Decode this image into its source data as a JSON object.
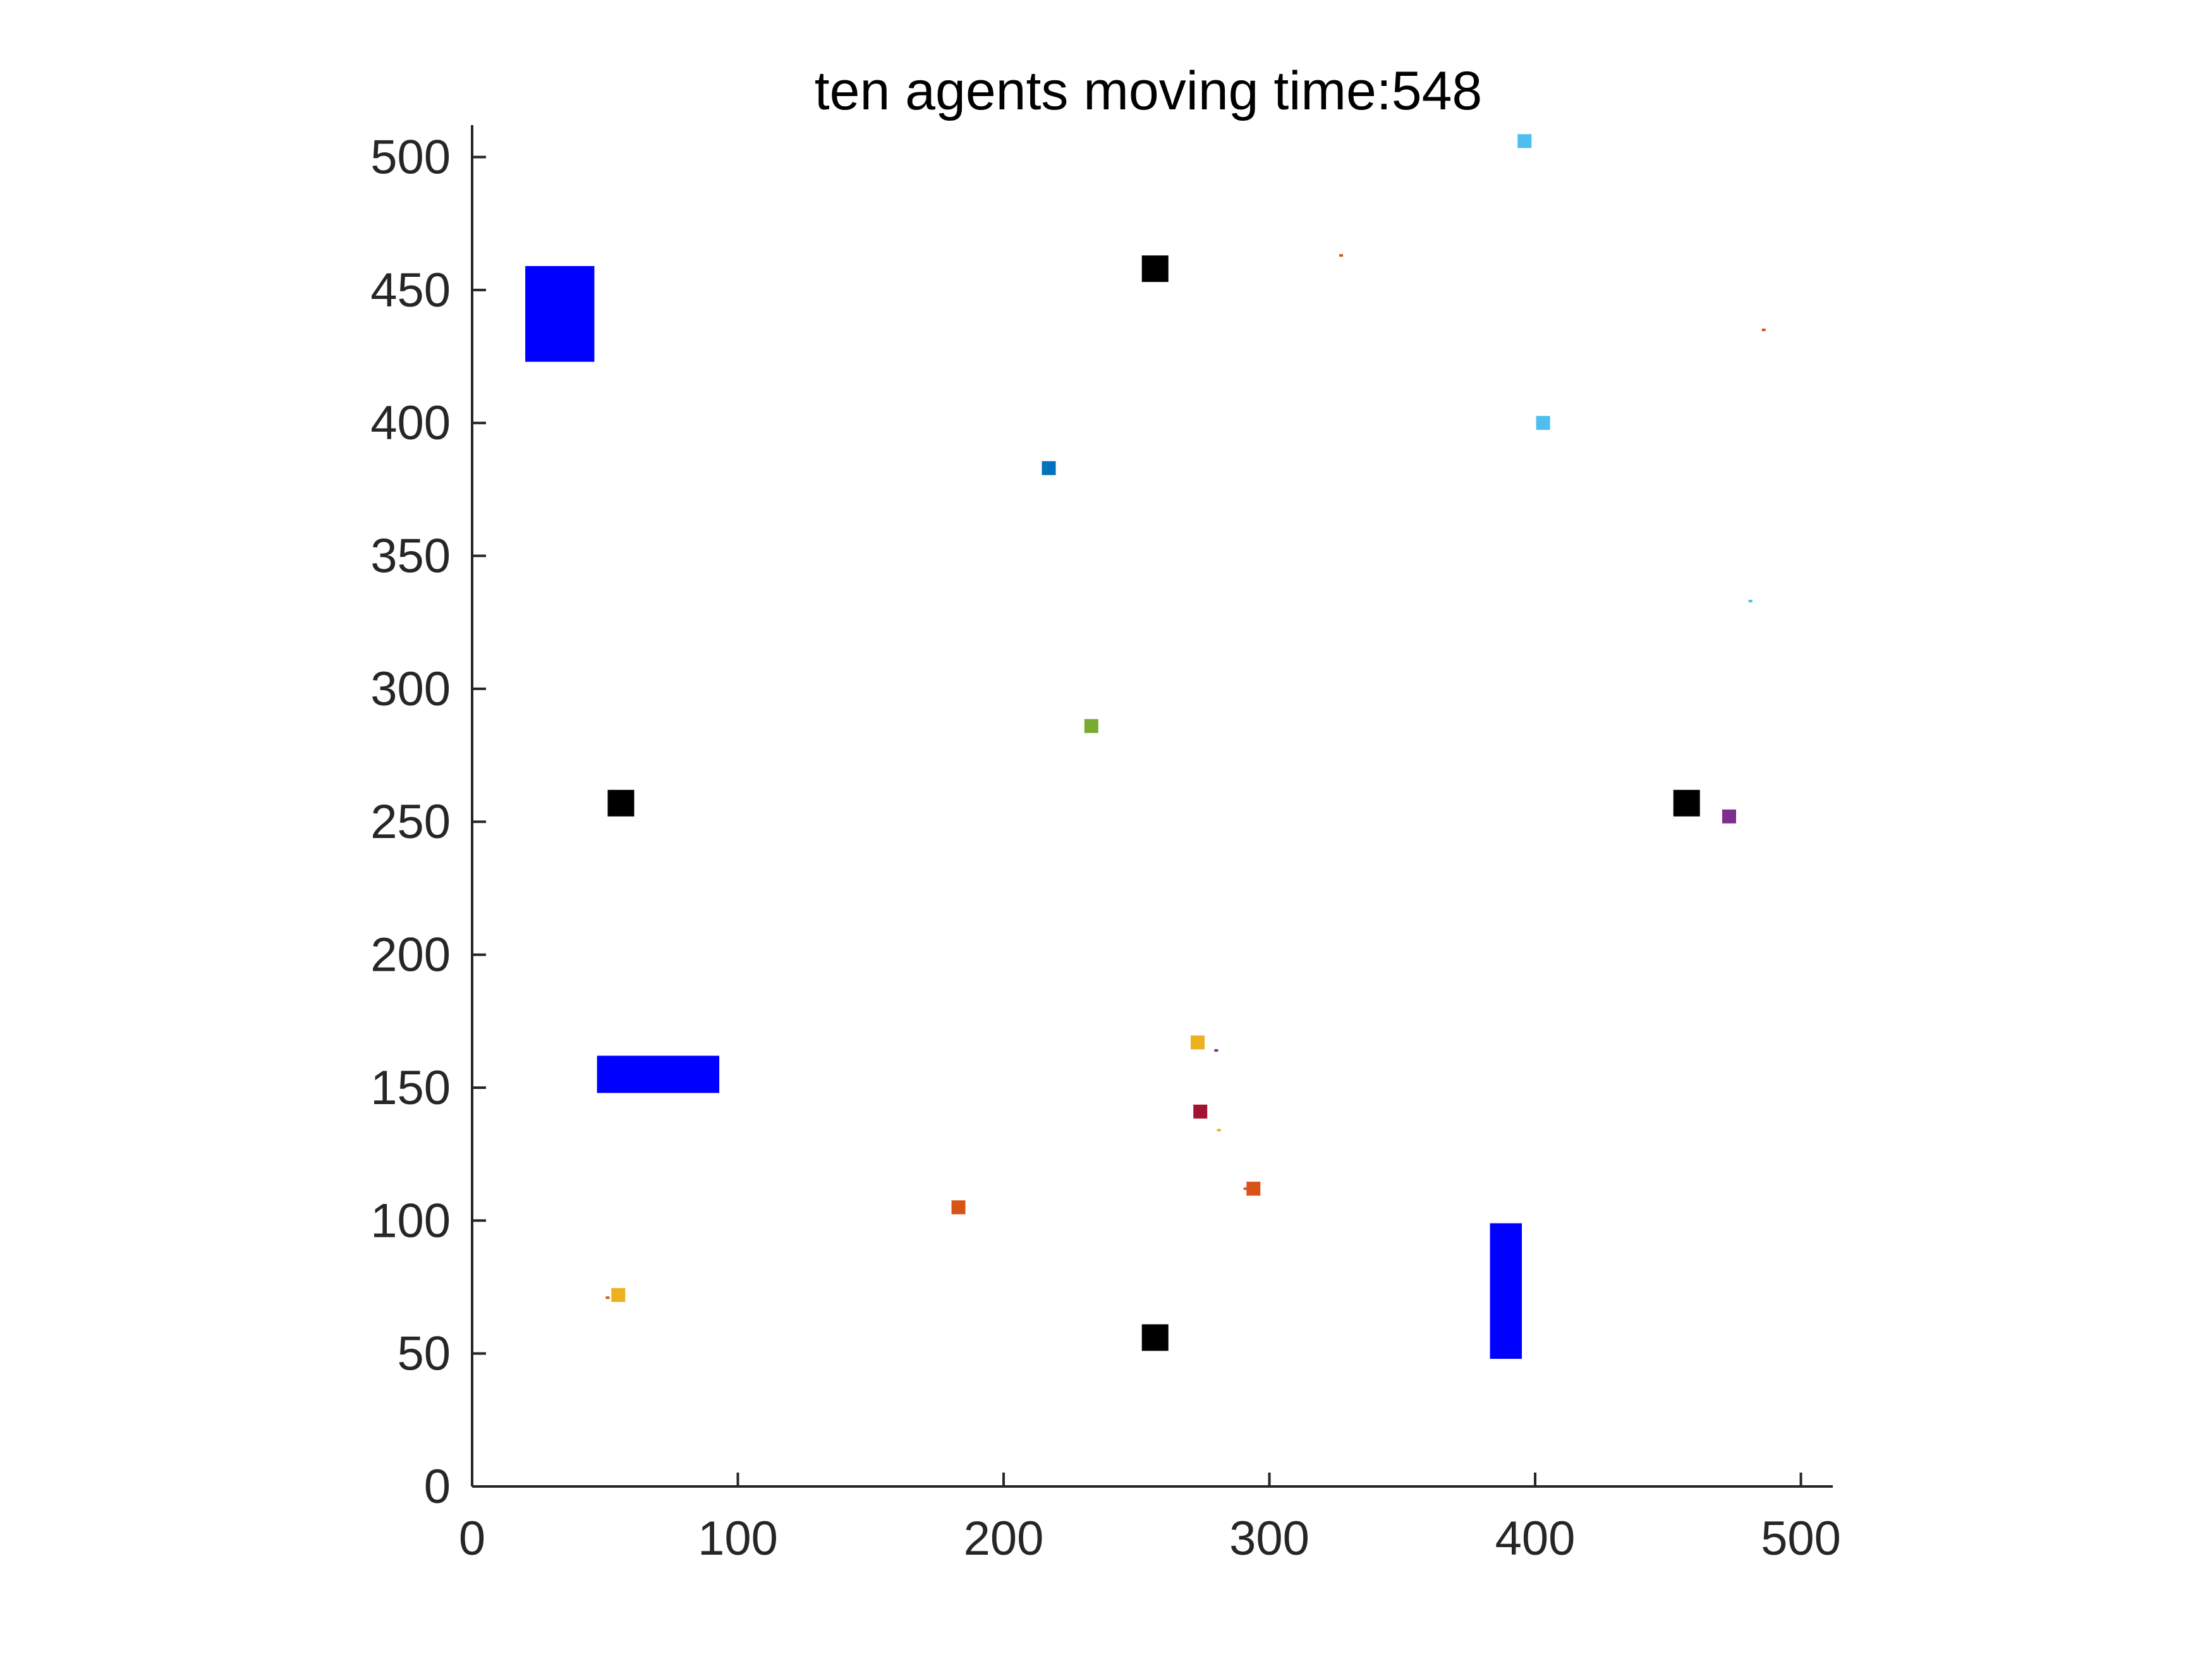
{
  "chart_data": {
    "type": "scatter",
    "title": "ten agents moving time:548",
    "xlabel": "",
    "ylabel": "",
    "xlim": [
      0,
      512
    ],
    "ylim": [
      0,
      512
    ],
    "xticks": [
      0,
      100,
      200,
      300,
      400,
      500
    ],
    "yticks": [
      0,
      50,
      100,
      150,
      200,
      250,
      300,
      350,
      400,
      450,
      500
    ],
    "tick_labels_x": [
      "0",
      "100",
      "200",
      "300",
      "400",
      "500"
    ],
    "tick_labels_y": [
      "0",
      "50",
      "100",
      "150",
      "200",
      "250",
      "300",
      "350",
      "400",
      "450",
      "500"
    ],
    "grid": false,
    "obstacles": [
      {
        "x0": 20,
        "x1": 46,
        "y0": 423,
        "y1": 459,
        "color": "#0000ff"
      },
      {
        "x0": 47,
        "x1": 93,
        "y0": 148,
        "y1": 162,
        "color": "#0000ff"
      },
      {
        "x0": 383,
        "x1": 395,
        "y0": 48,
        "y1": 99,
        "color": "#0000ff"
      }
    ],
    "stations": [
      {
        "x": 257,
        "y": 458,
        "color": "#000000"
      },
      {
        "x": 56,
        "y": 257,
        "color": "#000000"
      },
      {
        "x": 457,
        "y": 257,
        "color": "#000000"
      },
      {
        "x": 257,
        "y": 56,
        "color": "#000000"
      }
    ],
    "agents": [
      {
        "x": 396,
        "y": 506,
        "color": "#4dbeee"
      },
      {
        "x": 403,
        "y": 400,
        "color": "#4dbeee"
      },
      {
        "x": 217,
        "y": 383,
        "color": "#0072bd"
      },
      {
        "x": 233,
        "y": 286,
        "color": "#77ac30"
      },
      {
        "x": 473,
        "y": 252,
        "color": "#7e2f8e"
      },
      {
        "x": 273,
        "y": 167,
        "color": "#edb120"
      },
      {
        "x": 274,
        "y": 141,
        "color": "#a2142f"
      },
      {
        "x": 294,
        "y": 112,
        "color": "#d95319"
      },
      {
        "x": 183,
        "y": 105,
        "color": "#d95319"
      },
      {
        "x": 55,
        "y": 72,
        "color": "#edb120"
      }
    ],
    "traces": [
      {
        "x": 327,
        "y": 463,
        "color": "#d95319"
      },
      {
        "x": 486,
        "y": 435,
        "color": "#d95319"
      },
      {
        "x": 481,
        "y": 333,
        "color": "#4dbeee"
      },
      {
        "x": 280,
        "y": 164,
        "color": "#7e2f8e"
      },
      {
        "x": 281,
        "y": 134,
        "color": "#edb120"
      },
      {
        "x": 291,
        "y": 112,
        "color": "#d95319"
      },
      {
        "x": 51,
        "y": 71,
        "color": "#d95319"
      }
    ]
  },
  "colors": {
    "axis": "#262626",
    "background": "#ffffff"
  }
}
